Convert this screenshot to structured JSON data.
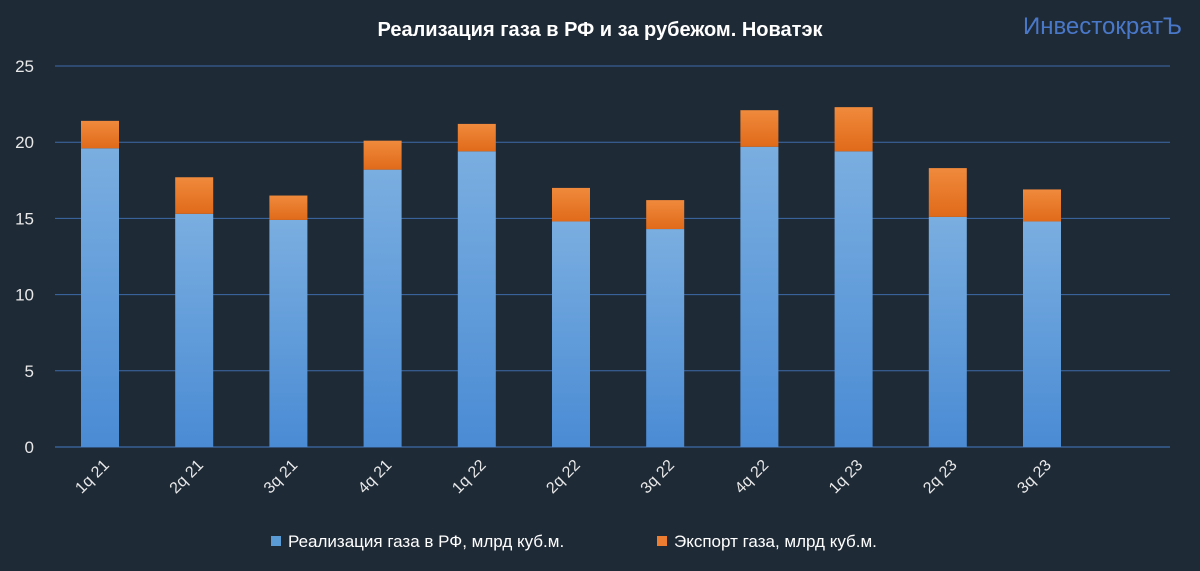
{
  "chart_data": {
    "type": "bar",
    "stacked": true,
    "title": "Реализация газа в РФ и за рубежом. Новатэк",
    "watermark": "ИнвестократЪ",
    "categories": [
      "1q 21",
      "2q 21",
      "3q 21",
      "4q 21",
      "1q 22",
      "2q 22",
      "3q 22",
      "4q 22",
      "1q 23",
      "2q 23",
      "3q 23"
    ],
    "series": [
      {
        "name": "Реализация газа в РФ, млрд куб.м.",
        "color": "#5b9bd5",
        "values": [
          19.6,
          15.3,
          14.9,
          18.2,
          19.4,
          14.8,
          14.3,
          19.7,
          19.4,
          15.1,
          14.8
        ]
      },
      {
        "name": "Экспорт газа, млрд куб.м.",
        "color": "#ed7d31",
        "values": [
          1.8,
          2.4,
          1.6,
          1.9,
          1.8,
          2.2,
          1.9,
          2.4,
          2.9,
          3.2,
          2.1
        ]
      }
    ],
    "ylim": [
      0,
      25
    ],
    "yticks": [
      0,
      5,
      10,
      15,
      20,
      25
    ],
    "grid": true,
    "legend": "bottom"
  }
}
